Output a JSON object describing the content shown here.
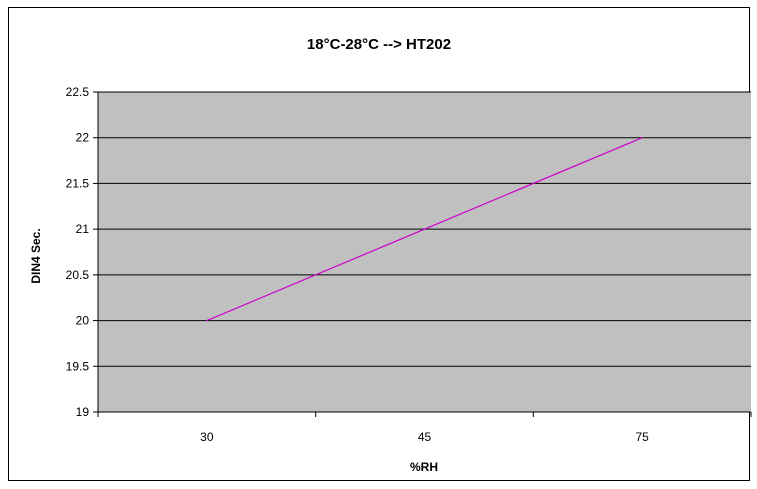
{
  "chart_data": {
    "type": "line",
    "title": "18°C-28°C --> HT202",
    "xlabel": "%RH",
    "ylabel": "DIN4 Sec.",
    "categories": [
      "30",
      "45",
      "75"
    ],
    "series": [
      {
        "values": [
          20,
          21,
          22
        ],
        "color": "#CC00CC"
      }
    ],
    "ylim": [
      19,
      22.5
    ],
    "yticks": [
      "19",
      "19.5",
      "20",
      "20.5",
      "21",
      "21.5",
      "22",
      "22.5"
    ],
    "grid": true,
    "plot_background": "#C0C0C0",
    "legend": "none"
  }
}
